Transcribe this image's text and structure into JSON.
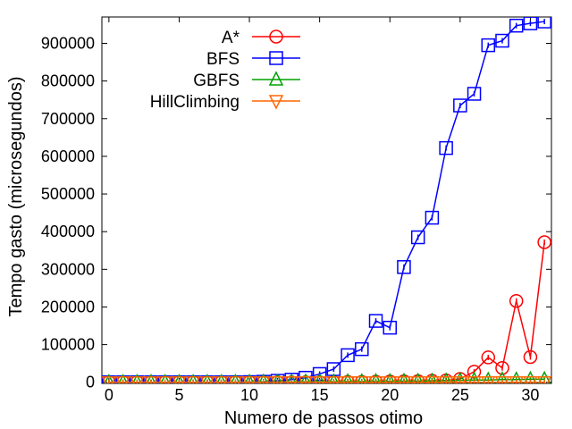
{
  "chart_data": {
    "type": "line",
    "xlabel": "Numero de passos otimo",
    "ylabel": "Tempo gasto (microsegundos)",
    "xlim": [
      -0.5,
      31.5
    ],
    "ylim": [
      -3000,
      970000
    ],
    "xticks": [
      0,
      5,
      10,
      15,
      20,
      25,
      30
    ],
    "yticks": [
      0,
      100000,
      200000,
      300000,
      400000,
      500000,
      600000,
      700000,
      800000,
      900000
    ],
    "grid": false,
    "legend_position": "top-left",
    "x": [
      0,
      1,
      2,
      3,
      4,
      5,
      6,
      7,
      8,
      9,
      10,
      11,
      12,
      13,
      14,
      15,
      16,
      17,
      18,
      19,
      20,
      21,
      22,
      23,
      24,
      25,
      26,
      27,
      28,
      29,
      30,
      31
    ],
    "series": [
      {
        "name": "A*",
        "color": "#ff0000",
        "marker": "circle",
        "values": [
          0,
          0,
          0,
          0,
          0,
          0,
          0,
          0,
          0,
          0,
          0,
          0,
          0,
          0,
          0,
          0,
          0,
          1000,
          1000,
          1500,
          2000,
          2500,
          3000,
          4000,
          5000,
          9000,
          28000,
          66000,
          38000,
          216000,
          67000,
          372000
        ]
      },
      {
        "name": "BFS",
        "color": "#0000ff",
        "marker": "square",
        "values": [
          0,
          0,
          0,
          0,
          0,
          0,
          0,
          0,
          0,
          0,
          500,
          1500,
          4000,
          7000,
          12000,
          22000,
          35000,
          72000,
          88000,
          163000,
          145000,
          306000,
          385000,
          437000,
          622000,
          735000,
          766000,
          895000,
          907000,
          947000,
          953000,
          958000
        ]
      },
      {
        "name": "GBFS",
        "color": "#00a000",
        "marker": "triangle-up",
        "values": [
          0,
          0,
          0,
          0,
          0,
          0,
          0,
          0,
          0,
          0,
          500,
          1000,
          1000,
          1000,
          1500,
          1500,
          1500,
          2000,
          2000,
          2500,
          2500,
          3000,
          3000,
          3500,
          4000,
          5000,
          6000,
          6000,
          7000,
          7000,
          8000,
          8000
        ]
      },
      {
        "name": "HillClimbing",
        "color": "#ff6600",
        "marker": "triangle-down",
        "values": [
          0,
          0,
          0,
          0,
          0,
          0,
          0,
          0,
          0,
          0,
          0,
          0,
          0,
          0,
          0,
          0,
          0,
          0,
          0,
          0,
          0,
          0,
          0,
          0,
          0,
          0,
          0,
          0,
          0,
          0,
          0,
          0
        ]
      }
    ]
  }
}
